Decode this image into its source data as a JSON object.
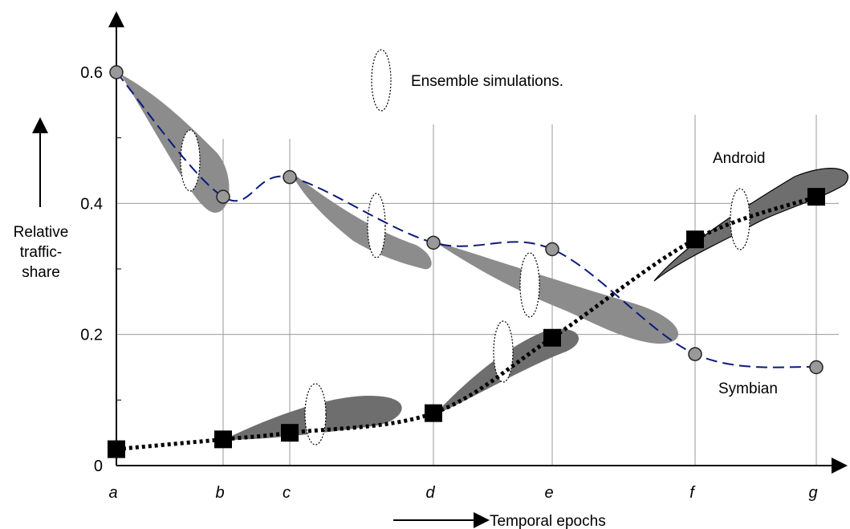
{
  "chart_data": {
    "type": "line",
    "title": "",
    "ylabel": "Relative traffic-share",
    "xlabel": "Temporal epochs",
    "categories": [
      "a",
      "b",
      "c",
      "d",
      "e",
      "f",
      "g"
    ],
    "yticks": [
      "0",
      "0.2",
      "0.4",
      "0.6"
    ],
    "ylim": [
      0,
      0.6
    ],
    "grid": true,
    "legend_text": "Ensemble simulations.",
    "series": [
      {
        "name": "Symbian",
        "values": [
          0.6,
          0.41,
          0.44,
          0.34,
          0.33,
          0.17,
          0.15
        ],
        "color": "#0a1a7a",
        "marker": "circle",
        "line": "dashed"
      },
      {
        "name": "Android",
        "values": [
          0.025,
          0.04,
          0.05,
          0.08,
          0.195,
          0.345,
          0.41
        ],
        "color": "#000000",
        "marker": "square",
        "line": "dotted"
      }
    ]
  },
  "colors": {
    "band": "#8c8c8c",
    "band_dark": "#6e6e6e",
    "grid": "#999999"
  }
}
